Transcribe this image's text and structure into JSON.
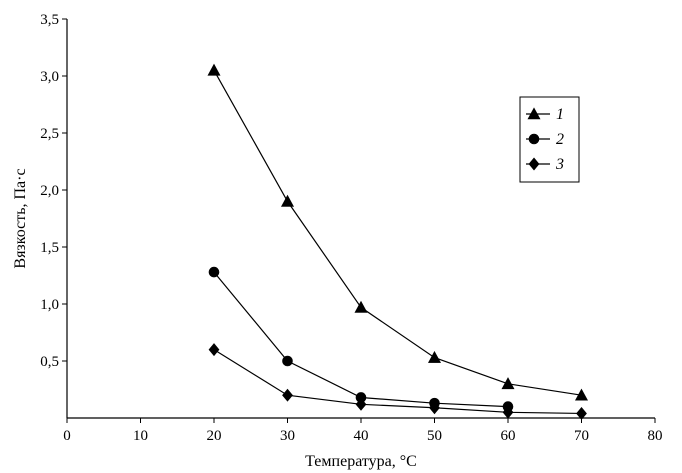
{
  "chart_data": {
    "type": "line",
    "title": "",
    "xlabel": "Температура, °C",
    "ylabel": "Вязкость, Па·с",
    "xlim": [
      0,
      80
    ],
    "ylim": [
      0,
      3.5
    ],
    "x_ticks": [
      "0",
      "10",
      "20",
      "30",
      "40",
      "50",
      "60",
      "70",
      "80"
    ],
    "y_ticks": [
      "0,5",
      "1,0",
      "1,5",
      "2,0",
      "2,5",
      "3,0",
      "3,5"
    ],
    "grid": false,
    "legend_position": "right",
    "series": [
      {
        "name": "1",
        "marker": "triangle",
        "x": [
          20,
          30,
          40,
          50,
          60,
          70
        ],
        "y": [
          3.05,
          1.9,
          0.97,
          0.53,
          0.3,
          0.2
        ]
      },
      {
        "name": "2",
        "marker": "circle",
        "x": [
          20,
          30,
          40,
          50,
          60
        ],
        "y": [
          1.28,
          0.5,
          0.18,
          0.13,
          0.1
        ]
      },
      {
        "name": "3",
        "marker": "diamond",
        "x": [
          20,
          30,
          40,
          50,
          60,
          70
        ],
        "y": [
          0.6,
          0.2,
          0.12,
          0.09,
          0.05,
          0.04
        ]
      }
    ]
  }
}
